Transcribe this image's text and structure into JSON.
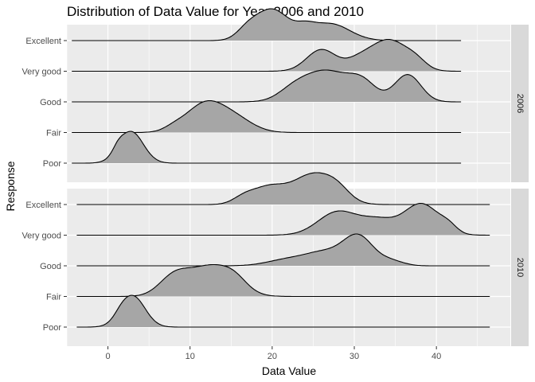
{
  "chart_data": {
    "type": "ridgeline",
    "title": "Distribution of Data Value for Year 2006 and 2010",
    "xlabel": "Data Value",
    "ylabel": "Response",
    "xlim": [
      -5,
      49
    ],
    "x_ticks": [
      0,
      10,
      20,
      30,
      40
    ],
    "grid": true,
    "categories": [
      "Poor",
      "Fair",
      "Good",
      "Very good",
      "Excellent"
    ],
    "colors": {
      "panel": "#ebebeb",
      "grid": "#ffffff",
      "strip": "#d9d9d9",
      "fill": "#a6a6a6",
      "line": "#000000"
    },
    "panels": [
      {
        "label": "2006",
        "x_range": [
          -4.4,
          43
        ],
        "series": [
          {
            "name": "Poor",
            "peaks": [
              [
                2.8,
                1.5,
                1.0
              ],
              [
                1.2,
                0.6,
                0.15
              ]
            ]
          },
          {
            "name": "Fair",
            "peaks": [
              [
                11.8,
                2.3,
                1.0
              ],
              [
                15.5,
                2.2,
                0.45
              ],
              [
                8.0,
                1.2,
                0.12
              ]
            ]
          },
          {
            "name": "Good",
            "peaks": [
              [
                26.5,
                2.8,
                0.9
              ],
              [
                36.5,
                1.6,
                0.8
              ],
              [
                31.0,
                1.7,
                0.5
              ],
              [
                22.5,
                1.8,
                0.25
              ]
            ]
          },
          {
            "name": "Very good",
            "peaks": [
              [
                34.2,
                2.2,
                1.0
              ],
              [
                26.0,
                1.8,
                0.7
              ],
              [
                30.5,
                1.6,
                0.3
              ],
              [
                37.5,
                1.3,
                0.25
              ]
            ]
          },
          {
            "name": "Excellent",
            "peaks": [
              [
                20.0,
                2.0,
                1.0
              ],
              [
                27.0,
                2.4,
                0.55
              ],
              [
                17.0,
                1.3,
                0.3
              ],
              [
                24.0,
                1.2,
                0.25
              ]
            ]
          }
        ]
      },
      {
        "label": "2010",
        "x_range": [
          -3.8,
          46.5
        ],
        "series": [
          {
            "name": "Poor",
            "peaks": [
              [
                3.0,
                1.5,
                1.0
              ],
              [
                1.5,
                0.8,
                0.1
              ]
            ]
          },
          {
            "name": "Fair",
            "peaks": [
              [
                12.5,
                2.7,
                0.85
              ],
              [
                8.0,
                1.8,
                0.5
              ],
              [
                15.5,
                1.5,
                0.25
              ]
            ]
          },
          {
            "name": "Good",
            "peaks": [
              [
                30.5,
                1.8,
                0.9
              ],
              [
                26.5,
                2.3,
                0.4
              ],
              [
                22.0,
                2.5,
                0.2
              ],
              [
                34.5,
                1.5,
                0.15
              ]
            ]
          },
          {
            "name": "Very good",
            "peaks": [
              [
                38.2,
                2.1,
                1.0
              ],
              [
                28.0,
                2.4,
                0.75
              ],
              [
                33.0,
                2.1,
                0.45
              ],
              [
                41.5,
                1.0,
                0.2
              ]
            ]
          },
          {
            "name": "Excellent",
            "peaks": [
              [
                25.0,
                2.5,
                1.0
              ],
              [
                19.5,
                2.0,
                0.55
              ],
              [
                16.5,
                1.3,
                0.2
              ],
              [
                28.0,
                1.5,
                0.3
              ]
            ]
          }
        ]
      }
    ]
  }
}
